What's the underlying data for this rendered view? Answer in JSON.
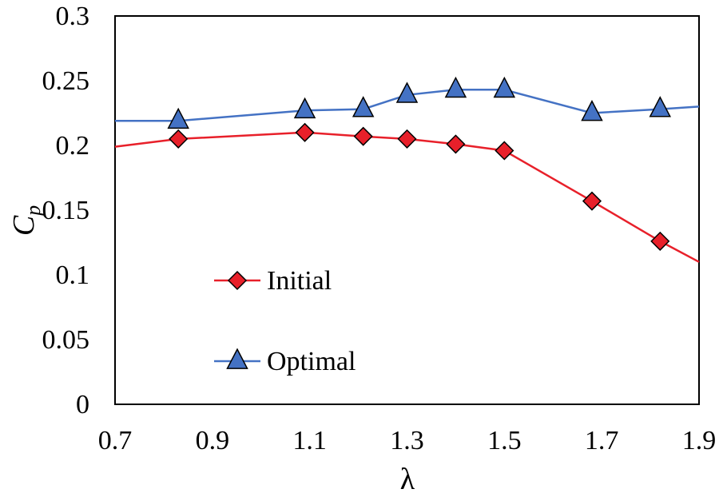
{
  "chart_data": {
    "type": "line",
    "xlabel": "λ",
    "ylabel_main": "C",
    "ylabel_sub": "p",
    "xlim": [
      0.7,
      1.9
    ],
    "ylim": [
      0,
      0.3
    ],
    "x_ticks": [
      "0.7",
      "0.9",
      "1.1",
      "1.3",
      "1.5",
      "1.7",
      "1.9"
    ],
    "y_ticks": [
      "0",
      "0.05",
      "0.1",
      "0.15",
      "0.2",
      "0.25",
      "0.3"
    ],
    "grid": false,
    "legend_position": "left-bottom",
    "series": [
      {
        "name": "Initial",
        "color": "#e8202a",
        "marker": "diamond",
        "line_start": [
          0.7,
          0.199
        ],
        "line_end": [
          1.9,
          0.11
        ],
        "points": [
          [
            0.83,
            0.205
          ],
          [
            1.09,
            0.21
          ],
          [
            1.21,
            0.207
          ],
          [
            1.3,
            0.205
          ],
          [
            1.4,
            0.201
          ],
          [
            1.5,
            0.196
          ],
          [
            1.68,
            0.157
          ],
          [
            1.82,
            0.126
          ]
        ]
      },
      {
        "name": "Optimal",
        "color": "#4472c4",
        "marker": "triangle",
        "line_start": [
          0.7,
          0.219
        ],
        "line_end": [
          1.9,
          0.23
        ],
        "points": [
          [
            0.83,
            0.219
          ],
          [
            1.09,
            0.227
          ],
          [
            1.21,
            0.228
          ],
          [
            1.3,
            0.239
          ],
          [
            1.4,
            0.243
          ],
          [
            1.5,
            0.243
          ],
          [
            1.68,
            0.225
          ],
          [
            1.82,
            0.228
          ]
        ]
      }
    ]
  }
}
